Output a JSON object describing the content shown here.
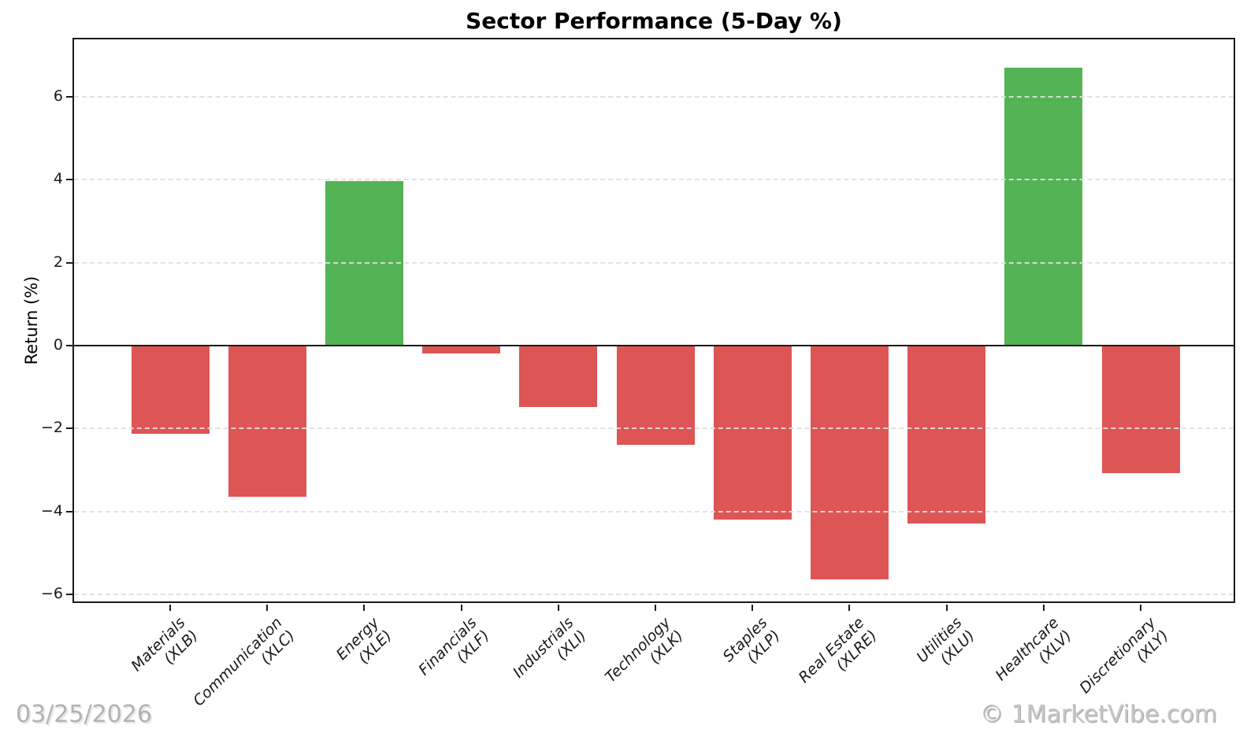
{
  "watermarks": {
    "date": "03/25/2026",
    "brand": "© 1MarketVibe.com"
  },
  "chart_data": {
    "type": "bar",
    "title": "Sector Performance (5-Day %)",
    "xlabel": "",
    "ylabel": "Return (%)",
    "categories": [
      {
        "label": "Materials",
        "ticker": "(XLB)"
      },
      {
        "label": "Communication",
        "ticker": "(XLC)"
      },
      {
        "label": "Energy",
        "ticker": "(XLE)"
      },
      {
        "label": "Financials",
        "ticker": "(XLF)"
      },
      {
        "label": "Industrials",
        "ticker": "(XLI)"
      },
      {
        "label": "Technology",
        "ticker": "(XLK)"
      },
      {
        "label": "Staples",
        "ticker": "(XLP)"
      },
      {
        "label": "Real Estate",
        "ticker": "(XLRE)"
      },
      {
        "label": "Utilities",
        "ticker": "(XLU)"
      },
      {
        "label": "Healthcare",
        "ticker": "(XLV)"
      },
      {
        "label": "Discretionary",
        "ticker": "(XLY)"
      }
    ],
    "values": [
      -2.13,
      -3.64,
      3.96,
      -0.18,
      -1.47,
      -2.39,
      -4.2,
      -5.64,
      -4.28,
      6.7,
      -3.07
    ],
    "yticks": [
      -6,
      -4,
      -2,
      0,
      2,
      4,
      6
    ],
    "ylim": [
      -6.24,
      7.38
    ],
    "grid": "horizontal-dashed-on-top",
    "legend_position": "none",
    "positive_color": "#54b355",
    "negative_color": "#dd5555",
    "axis_color": "#1a1a1a",
    "grid_color": "#e0e0e0"
  }
}
